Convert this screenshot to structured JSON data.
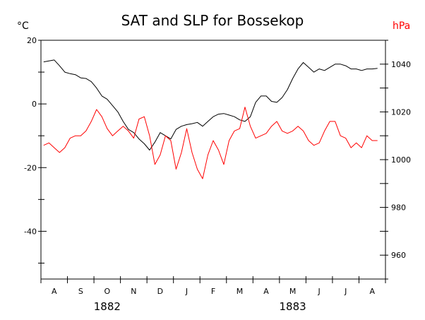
{
  "chart_data": {
    "type": "line",
    "title": "SAT and SLP for Bossekop",
    "left_unit": "°C",
    "right_unit": "hPa",
    "left_ylim": [
      -55,
      20
    ],
    "left_ticks": [
      20,
      0,
      -20,
      -40
    ],
    "right_ylim": [
      950,
      1050
    ],
    "right_ticks": [
      1040,
      1020,
      1000,
      980,
      960
    ],
    "x_month_labels": [
      "A",
      "S",
      "O",
      "N",
      "D",
      "J",
      "F",
      "M",
      "A",
      "M",
      "J",
      "J",
      "A"
    ],
    "x_year_labels": [
      {
        "label": "1882",
        "at_month": 2
      },
      {
        "label": "1883",
        "at_month": 9
      }
    ],
    "x_range_months": [
      0,
      13
    ],
    "grid": false,
    "colors": {
      "sat": "#000000",
      "slp": "#ff0000",
      "right_axis_text": "#ff0000"
    },
    "series": [
      {
        "key": "sat",
        "axis": "left",
        "x": [
          0.1,
          0.3,
          0.5,
          0.7,
          0.9,
          1.1,
          1.3,
          1.5,
          1.7,
          1.9,
          2.1,
          2.3,
          2.5,
          2.7,
          2.9,
          3.1,
          3.3,
          3.5,
          3.7,
          3.9,
          4.1,
          4.3,
          4.5,
          4.7,
          4.9,
          5.1,
          5.3,
          5.5,
          5.7,
          5.9,
          6.1,
          6.3,
          6.5,
          6.7,
          6.9,
          7.1,
          7.3,
          7.5,
          7.7,
          7.9,
          8.1,
          8.3,
          8.5,
          8.7,
          8.9,
          9.1,
          9.3,
          9.5,
          9.7,
          9.9,
          10.1,
          10.3,
          10.5,
          10.7,
          10.9,
          11.1,
          11.3,
          11.5,
          11.7,
          11.9,
          12.1,
          12.3,
          12.5,
          12.7
        ],
        "values": [
          13.2,
          13.5,
          13.8,
          12.0,
          10.0,
          9.5,
          9.2,
          8.2,
          8.0,
          7.0,
          5.0,
          2.5,
          1.5,
          -0.5,
          -2.5,
          -5.5,
          -8.0,
          -9.0,
          -11.0,
          -12.5,
          -14.5,
          -12.0,
          -9.0,
          -10.0,
          -11.0,
          -8.0,
          -7.0,
          -6.5,
          -6.2,
          -5.8,
          -7.0,
          -5.5,
          -4.0,
          -3.2,
          -3.0,
          -3.5,
          -4.0,
          -5.0,
          -5.5,
          -4.0,
          0.5,
          2.5,
          2.5,
          0.8,
          0.5,
          2.0,
          4.5,
          8.0,
          11.0,
          13.0,
          11.5,
          10.0,
          11.0,
          10.5,
          11.5,
          12.5,
          12.5,
          12.0,
          11.0,
          11.0,
          10.5,
          11.0,
          11.0,
          11.2
        ]
      },
      {
        "key": "slp",
        "axis": "right",
        "x": [
          0.1,
          0.3,
          0.5,
          0.7,
          0.9,
          1.1,
          1.3,
          1.5,
          1.7,
          1.9,
          2.1,
          2.3,
          2.5,
          2.7,
          2.9,
          3.1,
          3.3,
          3.5,
          3.7,
          3.9,
          4.1,
          4.3,
          4.5,
          4.7,
          4.9,
          5.1,
          5.3,
          5.5,
          5.7,
          5.9,
          6.1,
          6.3,
          6.5,
          6.7,
          6.9,
          7.1,
          7.3,
          7.5,
          7.7,
          7.9,
          8.1,
          8.3,
          8.5,
          8.7,
          8.9,
          9.1,
          9.3,
          9.5,
          9.7,
          9.9,
          10.1,
          10.3,
          10.5,
          10.7,
          10.9,
          11.1,
          11.3,
          11.5,
          11.7,
          11.9,
          12.1,
          12.3,
          12.5,
          12.7
        ],
        "values": [
          1006,
          1007,
          1005,
          1003,
          1005,
          1009,
          1010,
          1010,
          1012,
          1016,
          1021,
          1018,
          1013,
          1010,
          1012,
          1014,
          1012,
          1009,
          1017,
          1018,
          1010,
          998,
          1002,
          1010,
          1008,
          996,
          1003,
          1013,
          1003,
          996,
          992,
          1002,
          1008,
          1004,
          998,
          1008,
          1012,
          1013,
          1022,
          1014,
          1009,
          1010,
          1011,
          1014,
          1016,
          1012,
          1011,
          1012,
          1014,
          1012,
          1008,
          1006,
          1007,
          1012,
          1016,
          1016,
          1010,
          1009,
          1005,
          1007,
          1005,
          1010,
          1008,
          1008
        ]
      }
    ]
  }
}
